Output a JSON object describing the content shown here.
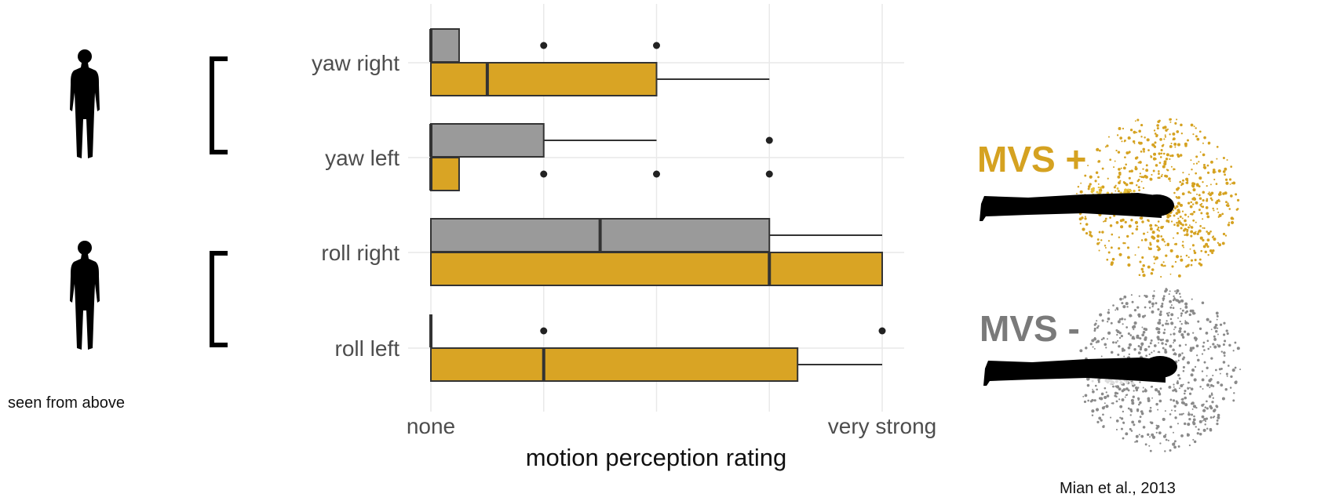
{
  "chart_data": {
    "type": "box",
    "categories": [
      "yaw right",
      "yaw left",
      "roll right",
      "roll left"
    ],
    "xlabel": "motion perception rating",
    "x_tick_labels": [
      {
        "value": 0,
        "label": "none"
      },
      {
        "value": 4,
        "label": "very strong"
      }
    ],
    "xlim": [
      0,
      4
    ],
    "grid": true,
    "series": [
      {
        "color": "#9a9a9a",
        "boxes": [
          {
            "category": "yaw right",
            "min": 0,
            "q1": 0,
            "median": 0,
            "q3": 0.25,
            "max": 0.25,
            "outliers": [
              1,
              2
            ]
          },
          {
            "category": "yaw left",
            "min": 0,
            "q1": 0,
            "median": 0,
            "q3": 1,
            "max": 2,
            "outliers": [
              3
            ]
          },
          {
            "category": "roll right",
            "min": 0,
            "q1": 0,
            "median": 1.5,
            "q3": 3,
            "max": 4,
            "outliers": []
          },
          {
            "category": "roll left",
            "min": 0,
            "q1": 0,
            "median": 0,
            "q3": 0,
            "max": 0,
            "outliers": [
              1,
              4
            ]
          }
        ]
      },
      {
        "color": "#d9a424",
        "boxes": [
          {
            "category": "yaw right",
            "min": 0,
            "q1": 0,
            "median": 0.5,
            "q3": 2,
            "max": 3,
            "outliers": []
          },
          {
            "category": "yaw left",
            "min": 0,
            "q1": 0,
            "median": 0,
            "q3": 0.25,
            "max": 0.25,
            "outliers": [
              1,
              2,
              3
            ]
          },
          {
            "category": "roll right",
            "min": 0,
            "q1": 0,
            "median": 3,
            "q3": 4,
            "max": 4,
            "outliers": []
          },
          {
            "category": "roll left",
            "min": 0,
            "q1": 0,
            "median": 1,
            "q3": 3.25,
            "max": 4,
            "outliers": []
          }
        ]
      }
    ]
  },
  "annotations": {
    "seen_from_above": "seen from above",
    "mvs_plus": "MVS +",
    "mvs_minus": "MVS -",
    "citation": "Mian et al., 2013"
  },
  "colors": {
    "grey_series": "#9a9a9a",
    "gold_series": "#d9a424",
    "mvs_plus_text": "#d5a221",
    "mvs_minus_text": "#7a7a7a"
  },
  "icons": [
    "human-silhouette-icon",
    "human-silhouette-icon",
    "bracket-icon",
    "bracket-icon",
    "lying-figure-icon",
    "lying-figure-icon"
  ]
}
